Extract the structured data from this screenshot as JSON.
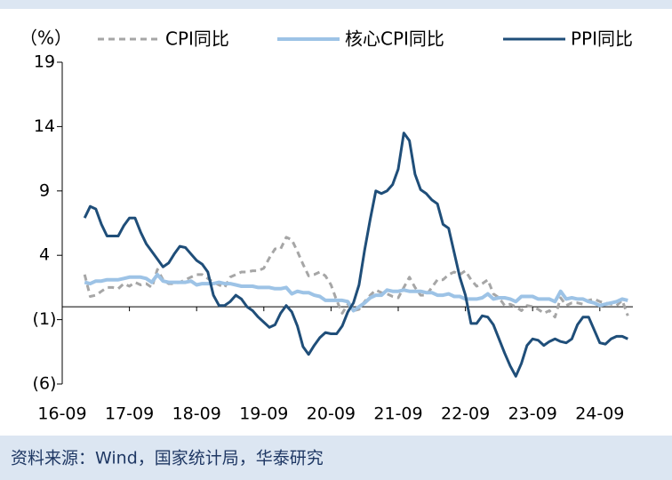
{
  "chart_data": {
    "type": "line",
    "unit_label": "（%）",
    "source": "资料来源：Wind，国家统计局，华泰研究",
    "categories": [
      "16-09",
      null,
      null,
      null,
      null,
      null,
      null,
      null,
      null,
      null,
      null,
      null,
      "17-09",
      null,
      null,
      null,
      null,
      null,
      null,
      null,
      null,
      null,
      null,
      null,
      "18-09",
      null,
      null,
      null,
      null,
      null,
      null,
      null,
      null,
      null,
      null,
      null,
      "19-09",
      null,
      null,
      null,
      null,
      null,
      null,
      null,
      null,
      null,
      null,
      null,
      "20-09",
      null,
      null,
      null,
      null,
      null,
      null,
      null,
      null,
      null,
      null,
      null,
      "21-09",
      null,
      null,
      null,
      null,
      null,
      null,
      null,
      null,
      null,
      null,
      null,
      "22-09",
      null,
      null,
      null,
      null,
      null,
      null,
      null,
      null,
      null,
      null,
      null,
      "23-09",
      null,
      null,
      null,
      null,
      null,
      null,
      null,
      null,
      null,
      null,
      null,
      "24-09",
      null,
      null,
      null,
      null,
      null
    ],
    "series": [
      {
        "name": "CPI同比",
        "color": "#a6a6a6",
        "line_style": "dashed",
        "values": [
          null,
          null,
          null,
          null,
          2.5,
          0.8,
          0.9,
          1.2,
          1.5,
          1.5,
          1.4,
          1.8,
          1.6,
          1.9,
          1.7,
          1.8,
          1.5,
          2.9,
          2.1,
          1.8,
          1.8,
          1.9,
          2.1,
          2.3,
          2.5,
          2.5,
          2.2,
          1.9,
          1.7,
          1.5,
          2.3,
          2.5,
          2.7,
          2.7,
          2.8,
          2.8,
          3.0,
          3.8,
          4.5,
          4.5,
          5.4,
          5.2,
          4.3,
          3.3,
          2.4,
          2.5,
          2.7,
          2.4,
          1.7,
          0.5,
          -0.5,
          0.2,
          -0.3,
          -0.2,
          0.4,
          0.9,
          1.3,
          1.1,
          1.0,
          0.8,
          0.7,
          1.5,
          2.3,
          1.5,
          0.9,
          0.9,
          1.5,
          2.1,
          2.1,
          2.5,
          2.7,
          2.5,
          2.8,
          2.1,
          1.6,
          1.8,
          2.1,
          1.0,
          0.7,
          0.1,
          0.2,
          0.0,
          -0.3,
          0.1,
          0.0,
          -0.2,
          -0.5,
          -0.3,
          -0.8,
          0.7,
          0.1,
          0.3,
          0.3,
          0.2,
          0.5,
          0.6,
          0.4,
          0.3,
          0.2,
          0.1,
          0.5,
          -0.7
        ]
      },
      {
        "name": "核心CPI同比",
        "color": "#9dc3e6",
        "line_style": "solid",
        "values": [
          null,
          null,
          null,
          null,
          1.9,
          1.8,
          2.0,
          2.0,
          2.1,
          2.1,
          2.1,
          2.2,
          2.3,
          2.3,
          2.3,
          2.2,
          1.9,
          2.5,
          2.0,
          1.9,
          1.9,
          1.9,
          1.9,
          2.0,
          1.7,
          1.8,
          1.8,
          1.8,
          1.9,
          1.8,
          1.8,
          1.7,
          1.6,
          1.6,
          1.6,
          1.5,
          1.5,
          1.5,
          1.4,
          1.4,
          1.5,
          1.0,
          1.2,
          1.1,
          1.1,
          0.9,
          0.8,
          0.5,
          0.5,
          0.5,
          0.5,
          0.4,
          -0.3,
          0.0,
          0.3,
          0.7,
          0.9,
          0.9,
          1.3,
          1.2,
          1.2,
          1.3,
          1.2,
          1.2,
          1.2,
          1.1,
          1.1,
          0.9,
          0.9,
          1.0,
          0.8,
          0.8,
          0.6,
          0.6,
          0.6,
          0.7,
          1.0,
          0.6,
          0.7,
          0.7,
          0.6,
          0.4,
          0.8,
          0.8,
          0.8,
          0.6,
          0.6,
          0.6,
          0.4,
          1.2,
          0.6,
          0.7,
          0.6,
          0.6,
          0.4,
          0.3,
          0.1,
          0.2,
          0.3,
          0.4,
          0.6,
          0.5
        ]
      },
      {
        "name": "PPI同比",
        "color": "#1f4e79",
        "line_style": "solid",
        "values": [
          null,
          null,
          null,
          null,
          6.9,
          7.8,
          7.6,
          6.4,
          5.5,
          5.5,
          5.5,
          6.3,
          6.9,
          6.9,
          5.8,
          4.9,
          4.3,
          3.7,
          3.1,
          3.4,
          4.1,
          4.7,
          4.6,
          4.1,
          3.6,
          3.3,
          2.7,
          0.9,
          0.1,
          0.1,
          0.4,
          0.9,
          0.6,
          0.0,
          -0.3,
          -0.8,
          -1.2,
          -1.6,
          -1.4,
          -0.5,
          0.1,
          -0.4,
          -1.5,
          -3.1,
          -3.7,
          -3.0,
          -2.4,
          -2.0,
          -2.1,
          -2.1,
          -1.5,
          -0.4,
          0.3,
          1.7,
          4.4,
          6.8,
          9.0,
          8.8,
          9.0,
          9.5,
          10.7,
          13.5,
          12.9,
          10.3,
          9.1,
          8.8,
          8.3,
          8.0,
          6.4,
          6.1,
          4.2,
          2.3,
          0.9,
          -1.3,
          -1.3,
          -0.7,
          -0.8,
          -1.4,
          -2.5,
          -3.6,
          -4.6,
          -5.4,
          -4.4,
          -3.0,
          -2.5,
          -2.6,
          -3.0,
          -2.7,
          -2.5,
          -2.7,
          -2.8,
          -2.5,
          -1.4,
          -0.8,
          -0.8,
          -1.8,
          -2.8,
          -2.9,
          -2.5,
          -2.3,
          -2.3,
          -2.5
        ]
      }
    ],
    "ylim": [
      -6,
      19
    ],
    "yticks": [
      {
        "value": -6,
        "label": "(6)"
      },
      {
        "value": -1,
        "label": "(1)"
      },
      4,
      9,
      14,
      19
    ]
  }
}
